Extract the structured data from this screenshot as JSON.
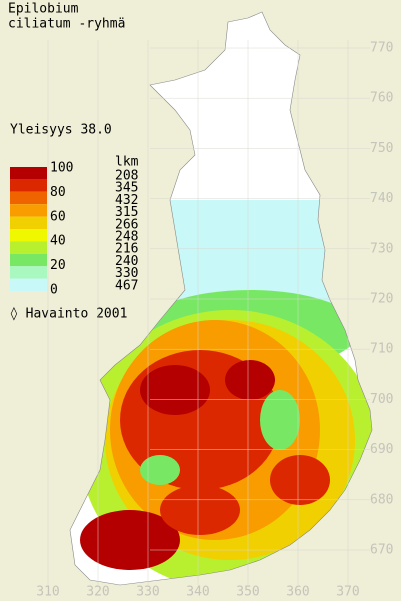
{
  "title_lines": [
    "Epilobium",
    "ciliatum -ryhmä"
  ],
  "frequency": "Yleisyys  38.0",
  "legend": {
    "scale_labels": [
      100,
      80,
      60,
      40,
      20,
      0
    ],
    "count_header": "lkm",
    "counts": [
      208,
      345,
      432,
      315,
      266,
      248,
      216,
      240,
      330,
      467
    ],
    "colors": [
      "#b40000",
      "#dc2800",
      "#f06400",
      "#f89c00",
      "#f0d000",
      "#f0f800",
      "#b8f030",
      "#78e864",
      "#a8f8c0",
      "#c8f8f8"
    ]
  },
  "observation_label": "◊ Havainto 2001",
  "y_ticks": [
    770,
    760,
    750,
    740,
    730,
    720,
    710,
    700,
    690,
    680,
    670
  ],
  "x_ticks": [
    310,
    320,
    330,
    340,
    350,
    360,
    370
  ]
}
